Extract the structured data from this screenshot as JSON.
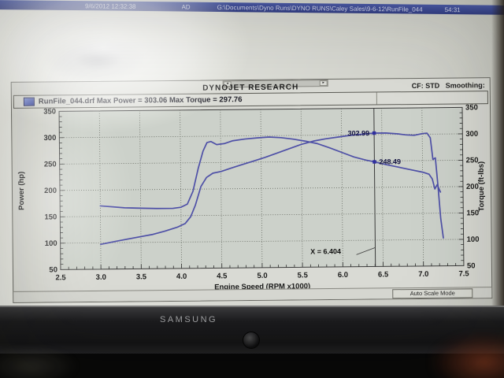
{
  "taskbar": {
    "datetime": "9/6/2012 12:32:38",
    "ad_label": "AD",
    "path": "G:\\Documents\\Dyno Runs\\DYNO RUNS\\Caley Sales\\9-6-12\\RunFile_044",
    "counter": "54:31"
  },
  "window": {
    "title": "DYNOJET RESEARCH",
    "cf_label": "CF: STD",
    "smoothing_label": "Smoothing:",
    "legend_text": "RunFile_044.drf Max Power = 303.06 Max Torque = 297.76",
    "status_auto_scale": "Auto Scale Mode",
    "scroll_left_glyph": "◂",
    "scroll_right_glyph": "▸"
  },
  "monitor": {
    "brand": "SAMSUNG"
  },
  "chart_data": {
    "type": "line",
    "title": "DYNOJET RESEARCH",
    "xlabel": "Engine Speed (RPM x1000)",
    "ylabel_left": "Power (hp)",
    "ylabel_right": "Torque (ft-lbs)",
    "xlim": [
      2.5,
      7.5
    ],
    "ylim": [
      50,
      350
    ],
    "x_ticks": [
      2.5,
      3.0,
      3.5,
      4.0,
      4.5,
      5.0,
      5.5,
      6.0,
      6.5,
      7.0,
      7.5
    ],
    "y_ticks": [
      350,
      300,
      250,
      200,
      150,
      100,
      50
    ],
    "grid": "dotted",
    "legend_position": "top-left",
    "max_power": 303.06,
    "max_torque": 297.76,
    "run_name": "RunFile_044.drf",
    "cursor": {
      "x": 6.404,
      "label": "X = 6.404"
    },
    "markers": [
      {
        "x": 6.404,
        "value": 302.99,
        "label": "302.99",
        "series": "Power (hp)",
        "side": "left"
      },
      {
        "x": 6.404,
        "value": 248.49,
        "label": "248.49",
        "series": "Torque (ft-lbs)",
        "side": "right"
      }
    ],
    "series": [
      {
        "name": "Power (hp)",
        "axis": "left",
        "color": "#4d4fae",
        "points": [
          [
            3.0,
            97
          ],
          [
            3.1,
            100
          ],
          [
            3.2,
            103
          ],
          [
            3.35,
            107
          ],
          [
            3.5,
            111
          ],
          [
            3.65,
            115
          ],
          [
            3.8,
            121
          ],
          [
            3.95,
            128
          ],
          [
            4.05,
            135
          ],
          [
            4.12,
            148
          ],
          [
            4.18,
            170
          ],
          [
            4.25,
            205
          ],
          [
            4.32,
            222
          ],
          [
            4.4,
            230
          ],
          [
            4.5,
            233
          ],
          [
            4.62,
            239
          ],
          [
            4.75,
            245
          ],
          [
            4.9,
            252
          ],
          [
            5.05,
            259
          ],
          [
            5.2,
            267
          ],
          [
            5.35,
            275
          ],
          [
            5.5,
            283
          ],
          [
            5.65,
            289
          ],
          [
            5.8,
            293
          ],
          [
            5.95,
            296
          ],
          [
            6.1,
            299
          ],
          [
            6.25,
            301
          ],
          [
            6.404,
            302.99
          ],
          [
            6.55,
            303
          ],
          [
            6.7,
            301
          ],
          [
            6.8,
            299
          ],
          [
            6.9,
            298
          ],
          [
            7.0,
            301
          ],
          [
            7.06,
            302
          ],
          [
            7.1,
            293
          ],
          [
            7.13,
            252
          ],
          [
            7.16,
            255
          ],
          [
            7.19,
            200
          ],
          [
            7.22,
            140
          ],
          [
            7.25,
            103
          ]
        ]
      },
      {
        "name": "Torque (ft-lbs)",
        "axis": "right",
        "color": "#4d4fae",
        "points": [
          [
            3.0,
            170
          ],
          [
            3.15,
            168
          ],
          [
            3.3,
            166
          ],
          [
            3.5,
            165
          ],
          [
            3.7,
            164
          ],
          [
            3.9,
            164
          ],
          [
            4.0,
            166
          ],
          [
            4.08,
            172
          ],
          [
            4.15,
            196
          ],
          [
            4.22,
            240
          ],
          [
            4.28,
            272
          ],
          [
            4.33,
            288
          ],
          [
            4.38,
            290
          ],
          [
            4.45,
            284
          ],
          [
            4.55,
            286
          ],
          [
            4.65,
            291
          ],
          [
            4.8,
            294
          ],
          [
            4.95,
            296
          ],
          [
            5.1,
            297.5
          ],
          [
            5.25,
            296
          ],
          [
            5.4,
            293
          ],
          [
            5.55,
            289
          ],
          [
            5.7,
            284
          ],
          [
            5.85,
            276
          ],
          [
            6.0,
            267
          ],
          [
            6.15,
            258
          ],
          [
            6.3,
            252
          ],
          [
            6.404,
            248.49
          ],
          [
            6.55,
            243
          ],
          [
            6.7,
            238
          ],
          [
            6.85,
            233
          ],
          [
            7.0,
            228
          ],
          [
            7.08,
            224
          ],
          [
            7.12,
            215
          ],
          [
            7.15,
            196
          ],
          [
            7.18,
            204
          ],
          [
            7.22,
            190
          ]
        ]
      }
    ]
  }
}
